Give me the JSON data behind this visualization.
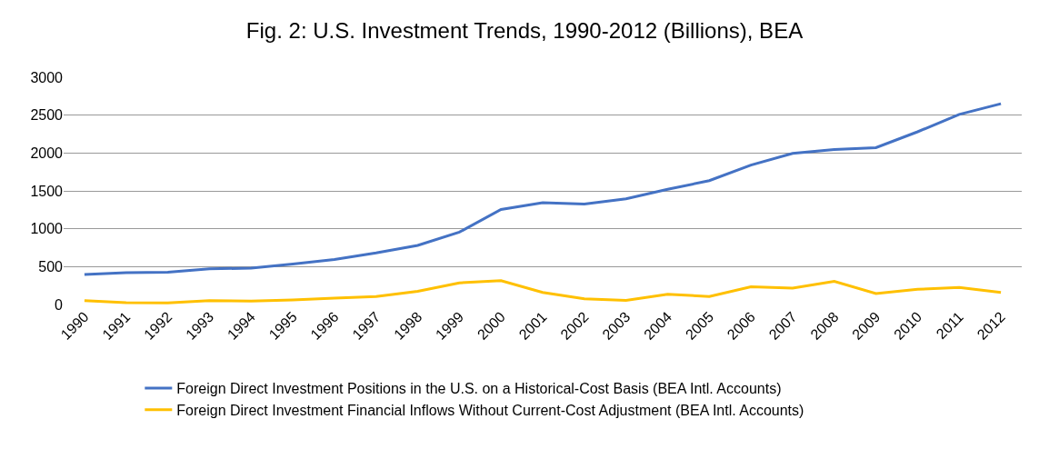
{
  "chart_data": {
    "type": "line",
    "title": "Fig. 2: U.S. Investment Trends, 1990-2012 (Billions), BEA",
    "categories": [
      "1990",
      "1991",
      "1992",
      "1993",
      "1994",
      "1995",
      "1996",
      "1997",
      "1998",
      "1999",
      "2000",
      "2001",
      "2002",
      "2003",
      "2004",
      "2005",
      "2006",
      "2007",
      "2008",
      "2009",
      "2010",
      "2011",
      "2012"
    ],
    "series": [
      {
        "name": "Foreign Direct Investment Positions in the U.S. on a Historical-Cost Basis (BEA Intl. Accounts)",
        "color": "#4472c4",
        "values": [
          395,
          420,
          425,
          470,
          480,
          535,
          595,
          680,
          780,
          955,
          1255,
          1345,
          1325,
          1395,
          1520,
          1635,
          1840,
          1995,
          2045,
          2070,
          2280,
          2510,
          2650
        ]
      },
      {
        "name": "Foreign Direct Investment Financial Inflows Without Current-Cost Adjustment (BEA Intl. Accounts)",
        "color": "#ffc000",
        "values": [
          50,
          25,
          20,
          50,
          45,
          60,
          85,
          105,
          175,
          285,
          315,
          160,
          75,
          55,
          135,
          105,
          235,
          215,
          305,
          145,
          200,
          225,
          160
        ]
      }
    ],
    "ylim": [
      0,
      3000
    ],
    "yticks": [
      0,
      500,
      1000,
      1500,
      2000,
      2500,
      3000
    ],
    "grid": "y",
    "legend": "bottom",
    "marker": "none",
    "line_style": "solid"
  }
}
